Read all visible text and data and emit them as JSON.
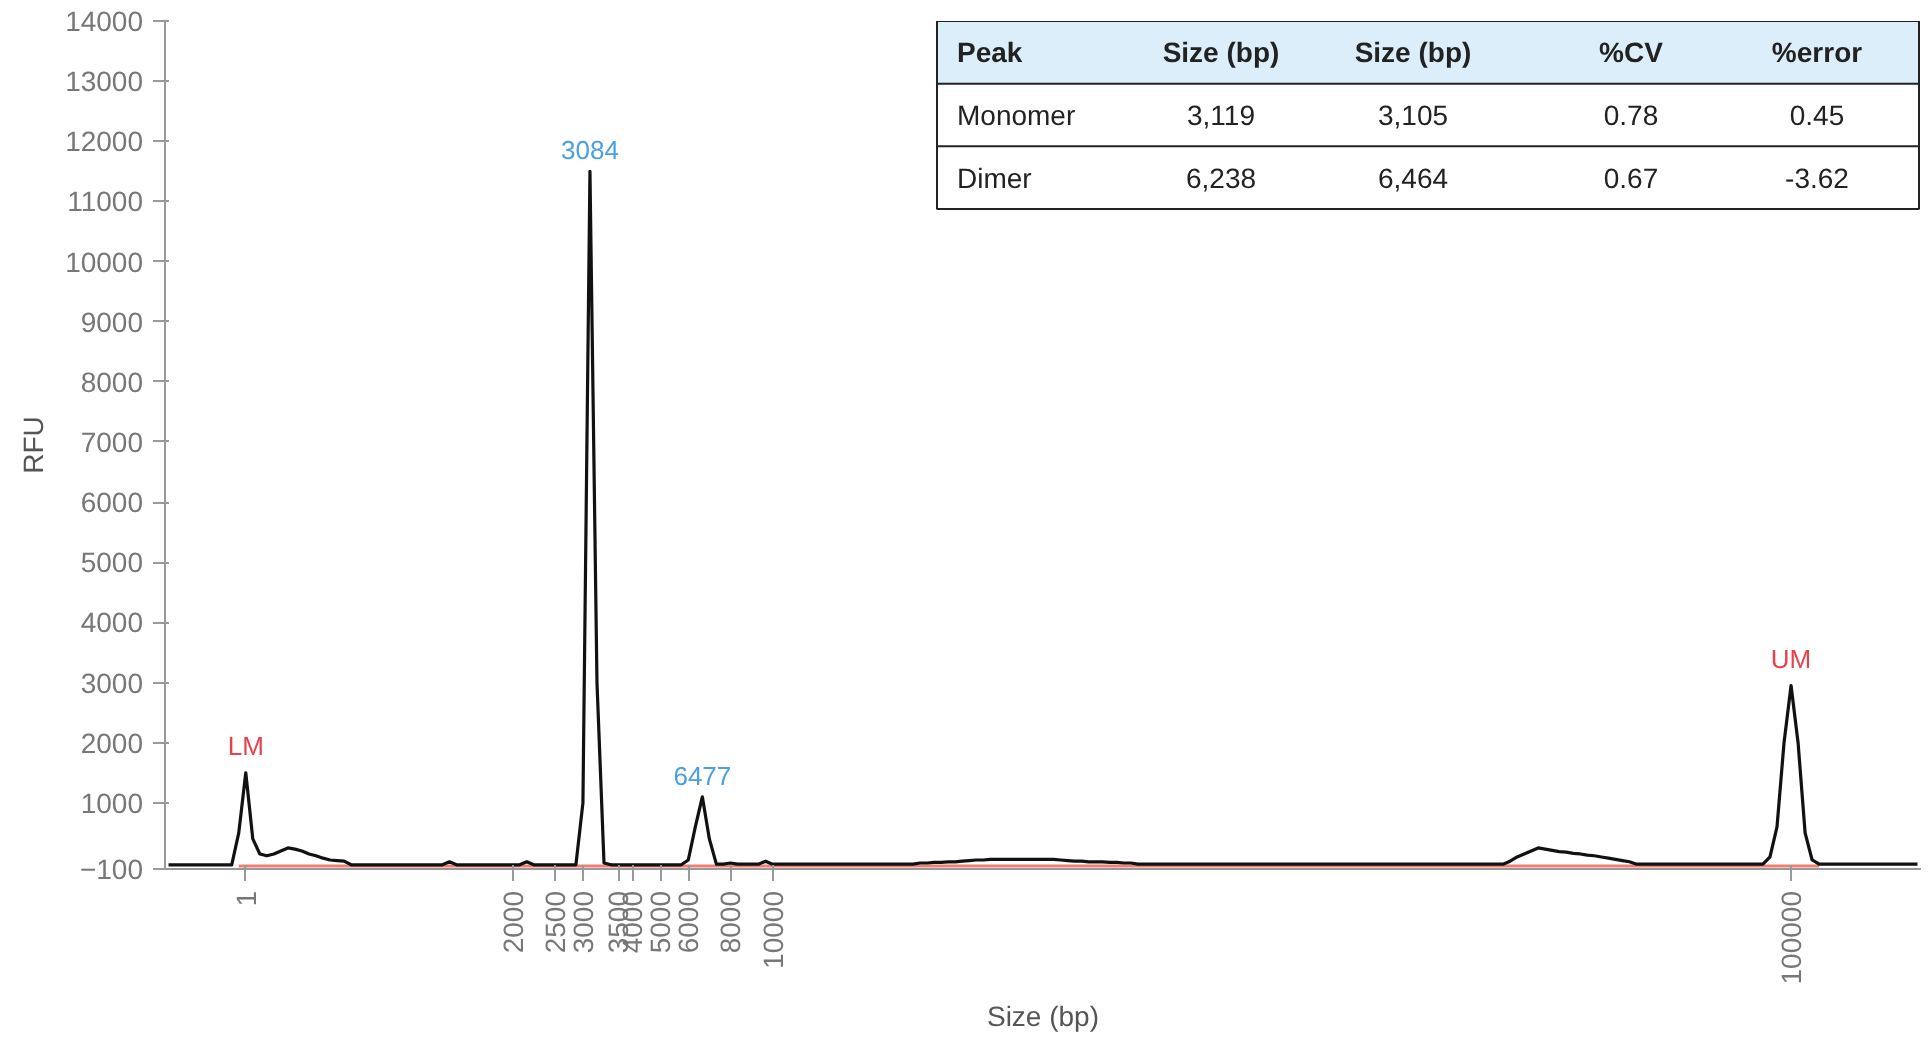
{
  "chart_data": {
    "type": "line",
    "xlabel": "Size (bp)",
    "ylabel": "RFU",
    "ylim": [
      -100,
      14000
    ],
    "yticks": [
      -100,
      1000,
      2000,
      3000,
      4000,
      5000,
      6000,
      7000,
      8000,
      9000,
      10000,
      11000,
      12000,
      13000,
      14000
    ],
    "grid": false,
    "marker": "none",
    "line_style": "solid",
    "categories": [
      null,
      null,
      null,
      null,
      null,
      null,
      null,
      null,
      null,
      null,
      null,
      "1",
      null,
      null,
      null,
      null,
      null,
      null,
      null,
      null,
      null,
      null,
      null,
      null,
      null,
      null,
      null,
      null,
      null,
      null,
      null,
      null,
      null,
      null,
      null,
      null,
      null,
      null,
      null,
      null,
      null,
      null,
      null,
      null,
      null,
      null,
      null,
      null,
      null,
      "2000",
      null,
      null,
      null,
      null,
      null,
      "2500",
      null,
      null,
      null,
      "3000",
      null,
      null,
      null,
      null,
      "3500",
      null,
      "4000",
      null,
      null,
      null,
      "5000",
      null,
      null,
      null,
      "6000",
      null,
      null,
      null,
      null,
      null,
      "8000",
      null,
      null,
      null,
      null,
      null,
      "10000",
      null,
      null,
      null,
      null,
      null,
      null,
      null,
      null,
      null,
      null,
      null,
      null,
      null,
      null,
      null,
      null,
      null,
      null,
      null,
      null,
      null,
      null,
      null,
      null,
      null,
      null,
      null,
      null,
      null,
      null,
      null,
      null,
      null,
      null,
      null,
      null,
      null,
      null,
      null,
      null,
      null,
      null,
      null,
      null,
      null,
      null,
      null,
      null,
      null,
      null,
      null,
      null,
      null,
      null,
      null,
      null,
      null,
      null,
      null,
      null,
      null,
      null,
      null,
      null,
      null,
      null,
      null,
      null,
      null,
      null,
      null,
      null,
      null,
      null,
      null,
      null,
      null,
      null,
      null,
      null,
      null,
      null,
      null,
      null,
      null,
      null,
      null,
      null,
      null,
      null,
      null,
      null,
      null,
      null,
      null,
      null,
      null,
      null,
      null,
      null,
      null,
      null,
      null,
      null,
      null,
      null,
      null,
      null,
      null,
      null,
      null,
      null,
      null,
      null,
      null,
      null,
      null,
      null,
      null,
      null,
      null,
      null,
      null,
      null,
      null,
      null,
      null,
      null,
      null,
      null,
      null,
      null,
      null,
      null,
      null,
      null,
      null,
      null,
      null,
      null,
      null,
      null,
      null,
      null,
      "100000",
      null,
      null,
      null,
      null,
      null,
      null,
      null,
      null,
      null,
      null,
      null,
      null,
      null,
      null,
      null,
      null,
      null,
      null
    ],
    "series": [
      {
        "color": "#f08070",
        "values": [
          null,
          null,
          null,
          null,
          null,
          null,
          null,
          null,
          null,
          null,
          -50,
          -50,
          -50,
          -50,
          -50,
          -50,
          -50,
          -50,
          -50,
          -50,
          -50,
          -50,
          -50,
          -50,
          -50,
          -50,
          -50,
          -50,
          -50,
          -50,
          -50,
          -50,
          -50,
          -50,
          -50,
          -50,
          -50,
          -50,
          -50,
          -50,
          -50,
          -50,
          -50,
          -50,
          -50,
          -50,
          -50,
          -50,
          -50,
          -50,
          -50,
          -50,
          -50,
          -50,
          -50,
          -50,
          -50,
          -50,
          -50,
          -50,
          -50,
          -50,
          -50,
          -50,
          -50,
          -50,
          -50,
          -50,
          -50,
          -50,
          -50,
          -50,
          -50,
          -50,
          -50,
          -50,
          -50,
          -50,
          -50,
          -50,
          -50,
          -50,
          -50,
          -50,
          -50,
          -50,
          -50,
          -50,
          -50,
          -50,
          -50,
          -50,
          -50,
          -50,
          -50,
          -50,
          -50,
          -50,
          -50,
          -50,
          -50,
          -50,
          -50,
          -50,
          -50,
          -50,
          -50,
          -50,
          -50,
          -50,
          -50,
          -50,
          -50,
          -50,
          -50,
          -50,
          -50,
          -50,
          -50,
          -50,
          -50,
          -50,
          -50,
          -50,
          -50,
          -50,
          -50,
          -50,
          -50,
          -50,
          -50,
          -50,
          -50,
          -50,
          -50,
          -50,
          -50,
          -50,
          -50,
          -50,
          -50,
          -50,
          -50,
          -50,
          -50,
          -50,
          -50,
          -50,
          -50,
          -50,
          -50,
          -50,
          -50,
          -50,
          -50,
          -50,
          -50,
          -50,
          -50,
          -50,
          -50,
          -50,
          -50,
          -50,
          -50,
          -50,
          -50,
          -50,
          -50,
          -50,
          -50,
          -50,
          -50,
          -50,
          -50,
          -50,
          -50,
          -50,
          -50,
          -50,
          -50,
          -50,
          -50,
          -50,
          -50,
          -50,
          -50,
          -50,
          -50,
          -50,
          -50,
          -50,
          -50,
          -50,
          -50,
          -50,
          -50,
          -50,
          -50,
          -50,
          -50,
          -50,
          -50,
          -50,
          -50,
          -50,
          -50,
          -50,
          -50,
          -50,
          -50,
          -50,
          -50,
          -50,
          -50,
          -50,
          -50,
          -50,
          -50,
          -50,
          -50,
          -50,
          -50,
          -50,
          -50,
          -50,
          -50,
          -50,
          -50,
          -50,
          -50,
          -50,
          -50,
          -50,
          -50,
          -50,
          null,
          null,
          null,
          null,
          null,
          null,
          null,
          null,
          null,
          null,
          null,
          null,
          null,
          null
        ]
      },
      {
        "color": "#111111",
        "values": [
          -30,
          -30,
          -30,
          -30,
          -30,
          -30,
          -30,
          -30,
          -30,
          -30,
          500,
          1500,
          400,
          150,
          120,
          150,
          200,
          250,
          230,
          200,
          150,
          120,
          80,
          50,
          40,
          30,
          -30,
          -30,
          -30,
          -30,
          -30,
          -30,
          -30,
          -30,
          -30,
          -30,
          -30,
          -30,
          -30,
          -30,
          20,
          -30,
          -30,
          -30,
          -30,
          -30,
          -30,
          -30,
          -30,
          -30,
          -30,
          20,
          -30,
          -30,
          -30,
          -30,
          -30,
          -30,
          -30,
          1000,
          11500,
          3000,
          0,
          -30,
          -30,
          -30,
          -30,
          -30,
          -30,
          -30,
          -30,
          -30,
          -30,
          -30,
          50,
          600,
          1100,
          400,
          -20,
          -20,
          0,
          -20,
          -20,
          -20,
          -20,
          30,
          -20,
          -20,
          -20,
          -20,
          -20,
          -20,
          -20,
          -20,
          -20,
          -20,
          -20,
          -20,
          -20,
          -20,
          -20,
          -20,
          -20,
          -20,
          -20,
          -20,
          -20,
          0,
          0,
          10,
          10,
          20,
          20,
          30,
          40,
          50,
          50,
          60,
          60,
          60,
          60,
          60,
          60,
          60,
          60,
          60,
          60,
          50,
          40,
          30,
          30,
          20,
          20,
          20,
          10,
          10,
          0,
          0,
          -20,
          -20,
          -20,
          -20,
          -20,
          -20,
          -20,
          -20,
          -20,
          -20,
          -20,
          -20,
          -20,
          -20,
          -20,
          -20,
          -20,
          -20,
          -20,
          -20,
          -20,
          -20,
          -20,
          -20,
          -20,
          -20,
          -20,
          -20,
          -20,
          -20,
          -20,
          -20,
          -20,
          -20,
          -20,
          -20,
          -20,
          -20,
          -20,
          -20,
          -20,
          -20,
          -20,
          -20,
          -20,
          -20,
          -20,
          -20,
          -20,
          -20,
          -20,
          -20,
          -20,
          30,
          100,
          150,
          200,
          250,
          230,
          210,
          190,
          180,
          160,
          150,
          130,
          120,
          100,
          80,
          60,
          40,
          20,
          -20,
          -20,
          -20,
          -20,
          -20,
          -20,
          -20,
          -20,
          -20,
          -20,
          -20,
          -20,
          -20,
          -20,
          -20,
          -20,
          -20,
          -20,
          -20,
          100,
          600,
          2000,
          2950,
          2000,
          500,
          50,
          -20,
          -20,
          -20,
          -20,
          -20,
          -20,
          -20,
          -20,
          -20,
          -20,
          -20,
          -20,
          -20,
          -20,
          -20
        ]
      }
    ],
    "annotations": [
      {
        "text": "LM",
        "y": 1500
      },
      {
        "text": "3084",
        "y": 11500
      },
      {
        "text": "6477",
        "y": 1100
      },
      {
        "text": "UM",
        "y": 2950
      },
      "Peak",
      "Size (bp)",
      "Size (bp)",
      "%CV",
      "%error",
      "Monomer",
      "3,119",
      "3,105",
      "0.78",
      "0.45",
      "Dimer",
      "6,238",
      "6,464",
      "0.67",
      "-3.62"
    ]
  }
}
